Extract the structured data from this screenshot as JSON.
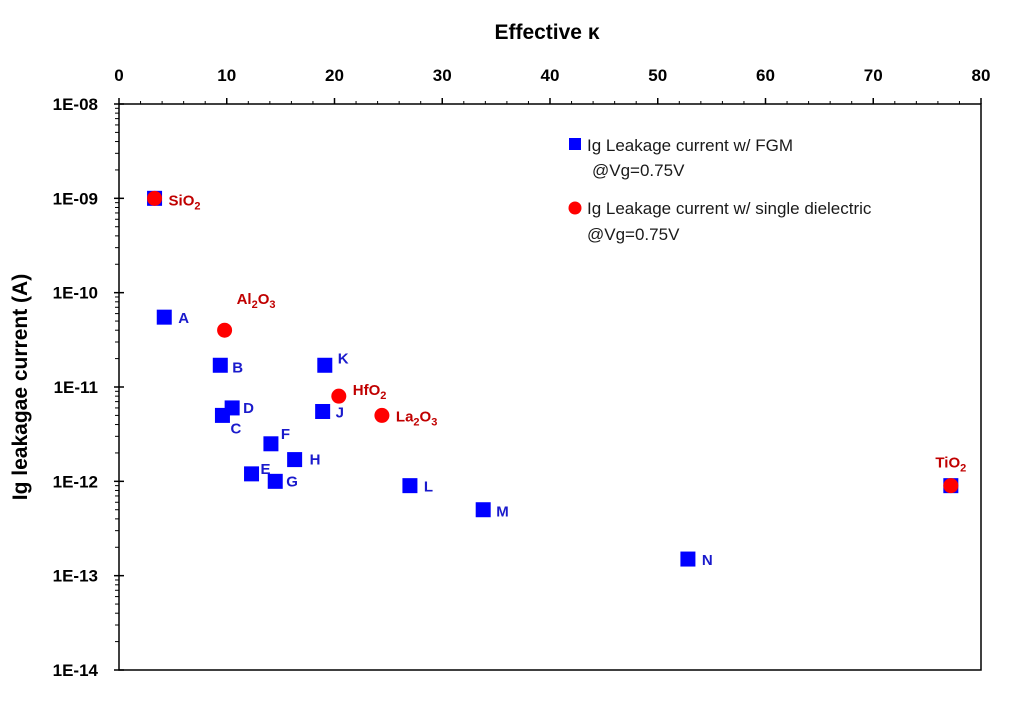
{
  "chart_data": {
    "type": "scatter",
    "xlabel": "Effective κ",
    "ylabel": "Ig leakagae current (A)",
    "xlim": [
      0,
      80
    ],
    "ylim": [
      1e-14,
      1e-08
    ],
    "y_scale": "log",
    "x_axis_position": "top",
    "x_ticks": [
      "0",
      "10",
      "20",
      "30",
      "40",
      "50",
      "60",
      "70",
      "80"
    ],
    "y_ticks": [
      "1E-08",
      "1E-09",
      "1E-10",
      "1E-11",
      "1E-12",
      "1E-13",
      "1E-14"
    ],
    "legend_position": "top-right",
    "series": [
      {
        "name": "Ig Leakage current w/ FGM",
        "name_line2": "@Vg=0.75V",
        "marker": "square",
        "color": "#0000ff",
        "label_color": "#1a1acc",
        "points": [
          {
            "x": 3.3,
            "y": 1e-09,
            "label": ""
          },
          {
            "x": 4.2,
            "y": 5.5e-11,
            "label": "A"
          },
          {
            "x": 9.4,
            "y": 1.7e-11,
            "label": "B"
          },
          {
            "x": 9.6,
            "y": 5e-12,
            "label": "C"
          },
          {
            "x": 10.5,
            "y": 6e-12,
            "label": "D"
          },
          {
            "x": 12.3,
            "y": 1.2e-12,
            "label": "E"
          },
          {
            "x": 14.1,
            "y": 2.5e-12,
            "label": "F"
          },
          {
            "x": 14.5,
            "y": 1e-12,
            "label": "G"
          },
          {
            "x": 16.3,
            "y": 1.7e-12,
            "label": "H"
          },
          {
            "x": 18.9,
            "y": 5.5e-12,
            "label": "J"
          },
          {
            "x": 19.1,
            "y": 1.7e-11,
            "label": "K"
          },
          {
            "x": 27.0,
            "y": 9e-13,
            "label": "L"
          },
          {
            "x": 33.8,
            "y": 5e-13,
            "label": "M"
          },
          {
            "x": 52.8,
            "y": 1.5e-13,
            "label": "N"
          },
          {
            "x": 77.2,
            "y": 9e-13,
            "label": ""
          }
        ]
      },
      {
        "name": "Ig Leakage current w/ single dielectric",
        "name_line2": "@Vg=0.75V",
        "marker": "circle",
        "color": "#ff0000",
        "label_color": "#c00000",
        "points": [
          {
            "x": 3.3,
            "y": 1e-09,
            "label": "SiO",
            "sub": "2",
            "post": ""
          },
          {
            "x": 9.8,
            "y": 4e-11,
            "label": "Al",
            "sub": "2",
            "post": "O",
            "sub2": "3"
          },
          {
            "x": 20.4,
            "y": 8e-12,
            "label": "HfO",
            "sub": "2",
            "post": ""
          },
          {
            "x": 24.4,
            "y": 5e-12,
            "label": "La",
            "sub": "2",
            "post": "O",
            "sub2": "3"
          },
          {
            "x": 77.2,
            "y": 9e-13,
            "label": "TiO",
            "sub": "2",
            "post": ""
          }
        ]
      }
    ]
  }
}
